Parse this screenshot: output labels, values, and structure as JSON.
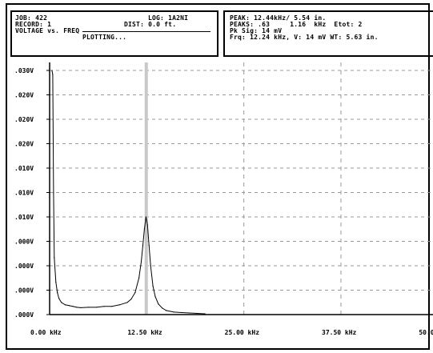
{
  "header": {
    "job": "JOB: 422",
    "log": "LOG: 1A2NI",
    "record": "RECORD: 1",
    "dist": "DIST: 0.0 ft.",
    "mode": "VOLTAGE vs. FREQ",
    "status": "PLOTTING...",
    "peak": "PEAK: 12.44kHz/ 5.54 in.",
    "peaks": "PEAKS: .63     1.16  kHz  Etot: 2",
    "pk_sig": "Pk Sig: 14 mV",
    "freq_line": "Frq: 12.24 kHz, V: 14 mV WT: 5.63 in."
  },
  "chart_data": {
    "type": "line",
    "title": "",
    "xlabel": "",
    "ylabel": "",
    "xlim": [
      0,
      50
    ],
    "ylim": [
      0,
      0.03
    ],
    "x_tick_labels": [
      "0.00 kHz",
      "12.50 kHz",
      "25.00 kHz",
      "37.50 kHz",
      "50.00 kHz"
    ],
    "y_tick_labels": [
      ".030V",
      ".020V",
      ".020V",
      ".020V",
      ".010V",
      ".010V",
      ".010V",
      ".000V",
      ".000V",
      ".000V",
      ".000V"
    ],
    "grid": true,
    "marker_x": 12.44,
    "series": [
      {
        "x": [
          0.3,
          0.4,
          0.5,
          0.6,
          0.8,
          1.0,
          1.2,
          1.5,
          2.0,
          2.5,
          3.0,
          3.5,
          4.0,
          5.0,
          6.0,
          7.0,
          8.0,
          9.0,
          10.0,
          10.5,
          11.0,
          11.5,
          11.8,
          12.0,
          12.2,
          12.4,
          12.6,
          12.8,
          13.0,
          13.3,
          13.6,
          14.0,
          14.5,
          15.0,
          16.0,
          17.0,
          18.0,
          19.0,
          20.0
        ],
        "y": [
          0.03,
          0.0295,
          0.015,
          0.007,
          0.004,
          0.0027,
          0.002,
          0.0015,
          0.0012,
          0.0011,
          0.001,
          0.0009,
          0.00085,
          0.0009,
          0.0009,
          0.001,
          0.001,
          0.0012,
          0.0015,
          0.0019,
          0.0027,
          0.0045,
          0.0065,
          0.0085,
          0.0105,
          0.012,
          0.011,
          0.0085,
          0.006,
          0.0035,
          0.0022,
          0.0013,
          0.0008,
          0.0005,
          0.0003,
          0.00025,
          0.0002,
          0.00015,
          0.0001
        ]
      }
    ]
  }
}
